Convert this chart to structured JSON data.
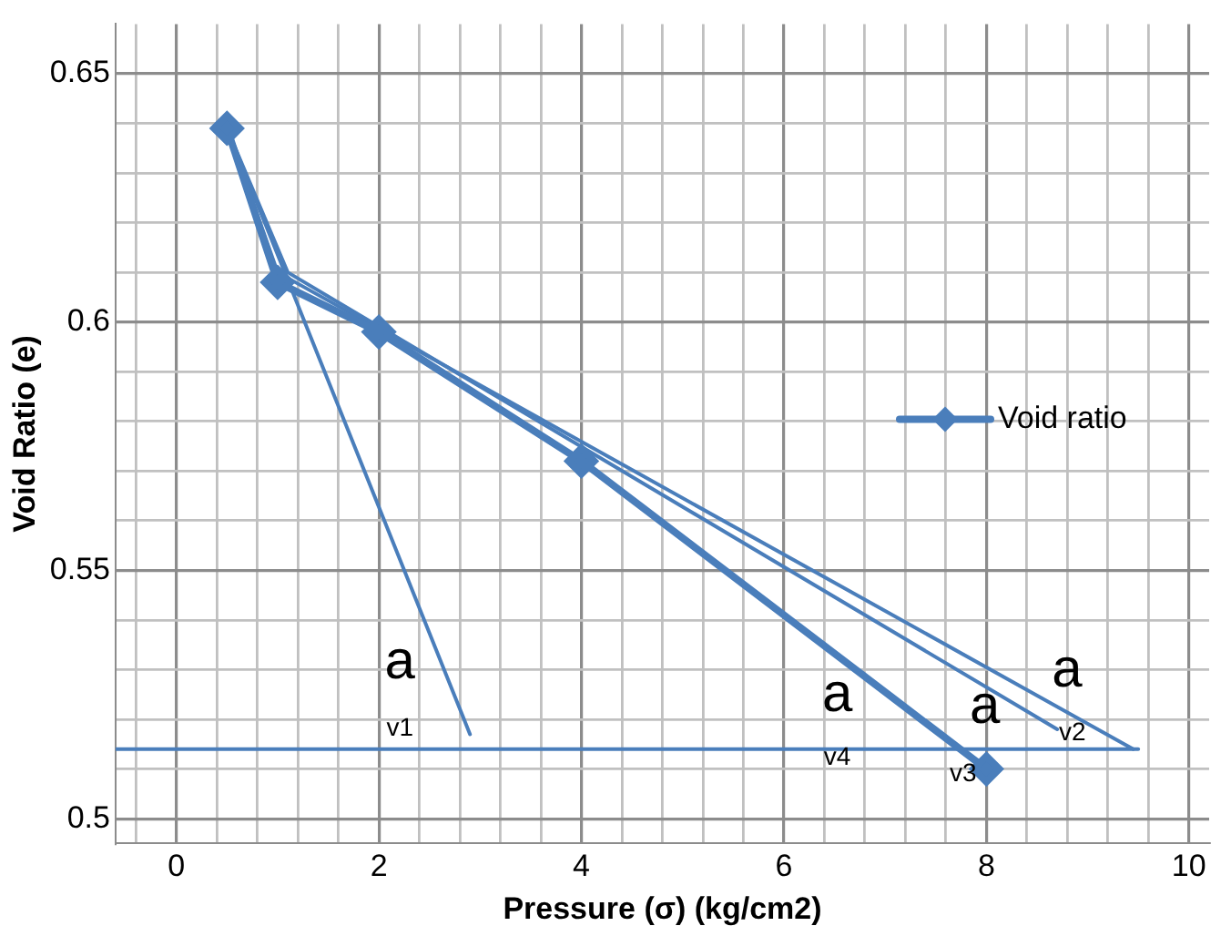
{
  "chart_data": {
    "type": "line",
    "xlabel": "Pressure (σ) (kg/cm2)",
    "ylabel": "Void Ratio (e)",
    "xlim": [
      -0.6,
      10.2
    ],
    "ylim": [
      0.495,
      0.66
    ],
    "xticks": [
      {
        "value": -0.4,
        "label": null
      },
      0,
      {
        "value": 0.4,
        "label": null
      },
      {
        "value": 0.8,
        "label": null
      },
      {
        "value": 1.2,
        "label": null
      },
      {
        "value": 1.6,
        "label": null
      },
      2,
      {
        "value": 2.4,
        "label": null
      },
      {
        "value": 2.8,
        "label": null
      },
      {
        "value": 3.2,
        "label": null
      },
      {
        "value": 3.6,
        "label": null
      },
      4,
      {
        "value": 4.4,
        "label": null
      },
      {
        "value": 4.8,
        "label": null
      },
      {
        "value": 5.2,
        "label": null
      },
      {
        "value": 5.6,
        "label": null
      },
      6,
      {
        "value": 6.4,
        "label": null
      },
      {
        "value": 6.8,
        "label": null
      },
      {
        "value": 7.2,
        "label": null
      },
      {
        "value": 7.6,
        "label": null
      },
      8,
      {
        "value": 8.4,
        "label": null
      },
      {
        "value": 8.8,
        "label": null
      },
      {
        "value": 9.2,
        "label": null
      },
      {
        "value": 9.6,
        "label": null
      },
      10
    ],
    "yticks": [
      0.5,
      {
        "value": 0.51,
        "label": null
      },
      {
        "value": 0.52,
        "label": null
      },
      {
        "value": 0.53,
        "label": null
      },
      {
        "value": 0.54,
        "label": null
      },
      0.55,
      {
        "value": 0.56,
        "label": null
      },
      {
        "value": 0.57,
        "label": null
      },
      {
        "value": 0.58,
        "label": null
      },
      {
        "value": 0.59,
        "label": null
      },
      0.6,
      {
        "value": 0.61,
        "label": null
      },
      {
        "value": 0.62,
        "label": null
      },
      {
        "value": 0.63,
        "label": null
      },
      {
        "value": 0.64,
        "label": null
      },
      0.65
    ],
    "grid": true,
    "legend": "right",
    "series": [
      {
        "name": "Void ratio",
        "color": "#4a7ebb",
        "marker": "diamond",
        "x": [
          0.5,
          1,
          2,
          4,
          8
        ],
        "values": [
          0.639,
          0.608,
          0.598,
          0.572,
          0.51
        ]
      },
      {
        "color": "#4a7ebb",
        "marker": "none",
        "x": [
          0.5,
          2.9
        ],
        "values": [
          0.639,
          0.517
        ]
      },
      {
        "color": "#4a7ebb",
        "marker": "none",
        "x": [
          0.5,
          1,
          9.45
        ],
        "values": [
          0.639,
          0.61,
          0.514
        ]
      },
      {
        "color": "#4a7ebb",
        "marker": "none",
        "x": [
          0.5,
          1.1,
          8.7
        ],
        "values": [
          0.639,
          0.61,
          0.518
        ]
      },
      {
        "color": "#4a7ebb",
        "marker": "none",
        "x": [
          -0.6,
          9.5
        ],
        "values": [
          0.514,
          0.514
        ]
      }
    ],
    "annotations": [
      "a",
      "v1",
      "a",
      "v4",
      "a",
      "v3",
      "a",
      "v2"
    ]
  }
}
